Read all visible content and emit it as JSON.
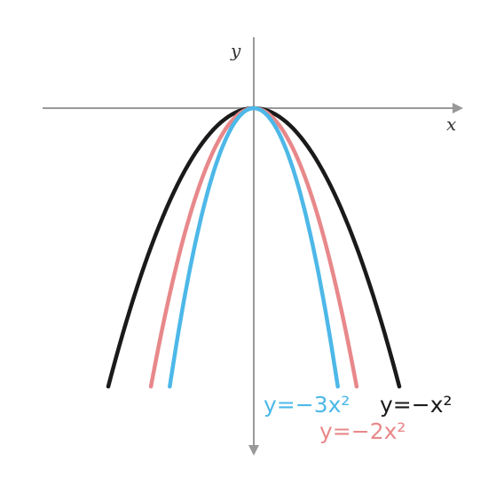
{
  "axes": {
    "x_label": "x",
    "y_label": "y",
    "color": "#999999"
  },
  "curves": [
    {
      "id": "minus-x2",
      "a": -1,
      "label": "y=−x²",
      "color": "#1a1a1a"
    },
    {
      "id": "minus-2x2",
      "a": -2,
      "label": "y=−2x²",
      "color": "#e8888a"
    },
    {
      "id": "minus-3x2",
      "a": -3,
      "label": "y=−3x²",
      "color": "#4db8e8"
    }
  ]
}
